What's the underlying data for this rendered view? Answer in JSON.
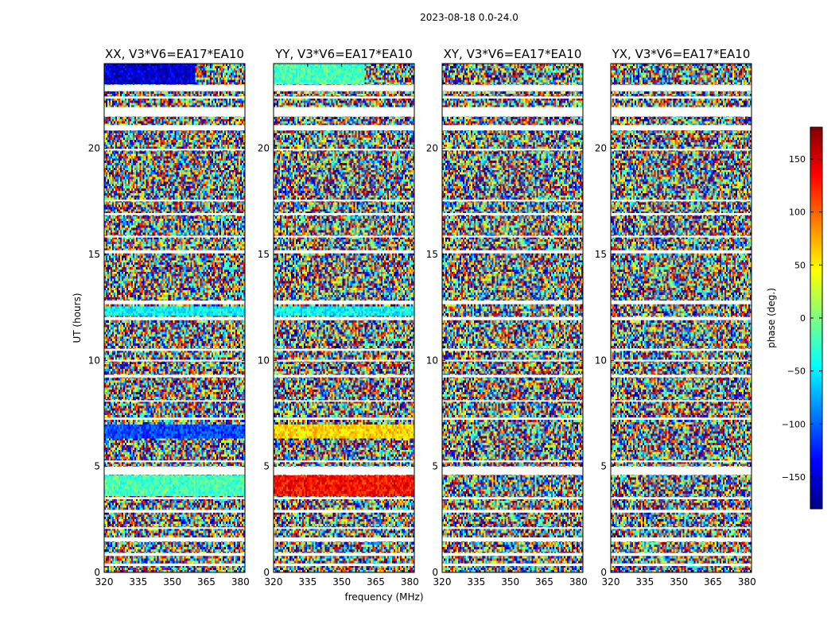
{
  "figure": {
    "suptitle": "2023-08-18 0.0-24.0"
  },
  "colorbar": {
    "label": "phase (deg.)",
    "ticks": [
      -150,
      -100,
      -50,
      0,
      50,
      100,
      150
    ],
    "tick_labels": [
      "−150",
      "−100",
      "−50",
      "0",
      "50",
      "100",
      "150"
    ],
    "range": [
      -180,
      180
    ],
    "colormap": "jet",
    "colors": [
      "#00007f",
      "#0000ff",
      "#007fff",
      "#00ffff",
      "#7fff7f",
      "#ffff00",
      "#ff7f00",
      "#ff0000",
      "#7f0000"
    ]
  },
  "chart_data": [
    {
      "type": "heatmap",
      "title": "XX, V3*V6=EA17*EA10",
      "xlabel": "",
      "ylabel": "UT (hours)",
      "xlim": [
        320,
        382
      ],
      "ylim": [
        0,
        24
      ],
      "xticks": [
        320,
        335,
        350,
        365,
        380
      ],
      "yticks": [
        0,
        5,
        10,
        15,
        20
      ],
      "value": "phase (deg.)",
      "coherent_bands": [
        {
          "t": [
            23.0,
            24.0
          ],
          "f": [
            320,
            360
          ],
          "phase": -150
        },
        {
          "t": [
            6.3,
            7.0
          ],
          "f": [
            320,
            382
          ],
          "phase": -110
        },
        {
          "t": [
            3.6,
            4.6
          ],
          "f": [
            320,
            382
          ],
          "phase": -20
        },
        {
          "t": [
            12.1,
            12.6
          ],
          "f": [
            320,
            382
          ],
          "phase": -45
        }
      ]
    },
    {
      "type": "heatmap",
      "title": "YY, V3*V6=EA17*EA10",
      "xlabel": "frequency (MHz)",
      "ylabel": "",
      "xlim": [
        320,
        382
      ],
      "ylim": [
        0,
        24
      ],
      "xticks": [
        320,
        335,
        350,
        365,
        380
      ],
      "yticks": [
        0,
        5,
        10,
        15,
        20
      ],
      "value": "phase (deg.)",
      "coherent_bands": [
        {
          "t": [
            23.0,
            24.0
          ],
          "f": [
            320,
            360
          ],
          "phase": -20
        },
        {
          "t": [
            6.3,
            7.0
          ],
          "f": [
            320,
            382
          ],
          "phase": 60
        },
        {
          "t": [
            3.6,
            4.6
          ],
          "f": [
            320,
            382
          ],
          "phase": 130
        },
        {
          "t": [
            12.1,
            12.6
          ],
          "f": [
            320,
            382
          ],
          "phase": -45
        }
      ]
    },
    {
      "type": "heatmap",
      "title": "XY, V3*V6=EA17*EA10",
      "xlabel": "",
      "ylabel": "",
      "xlim": [
        320,
        382
      ],
      "ylim": [
        0,
        24
      ],
      "xticks": [
        320,
        335,
        350,
        365,
        380
      ],
      "yticks": [
        0,
        5,
        10,
        15,
        20
      ],
      "value": "phase (deg.)",
      "coherent_bands": []
    },
    {
      "type": "heatmap",
      "title": "YX, V3*V6=EA17*EA10",
      "xlabel": "",
      "ylabel": "",
      "xlim": [
        320,
        382
      ],
      "ylim": [
        0,
        24
      ],
      "xticks": [
        320,
        335,
        350,
        365,
        380
      ],
      "yticks": [
        0,
        5,
        10,
        15,
        20
      ],
      "value": "phase (deg.)",
      "coherent_bands": []
    }
  ],
  "flagged_hours": [
    [
      0.3,
      0.42
    ],
    [
      0.78,
      0.92
    ],
    [
      1.45,
      1.65
    ],
    [
      2.05,
      2.13
    ],
    [
      2.82,
      2.95
    ],
    [
      3.45,
      3.55
    ],
    [
      4.6,
      5.0
    ],
    [
      5.2,
      5.28
    ],
    [
      7.2,
      7.3
    ],
    [
      8.05,
      8.12
    ],
    [
      9.2,
      9.32
    ],
    [
      9.95,
      10.03
    ],
    [
      10.45,
      10.55
    ],
    [
      11.9,
      12.05
    ],
    [
      12.65,
      12.82
    ],
    [
      15.05,
      15.2
    ],
    [
      15.8,
      15.88
    ],
    [
      16.85,
      16.95
    ],
    [
      17.5,
      17.58
    ],
    [
      19.9,
      19.98
    ],
    [
      20.85,
      21.1
    ],
    [
      21.5,
      21.95
    ],
    [
      22.35,
      22.45
    ],
    [
      22.7,
      23.0
    ]
  ]
}
